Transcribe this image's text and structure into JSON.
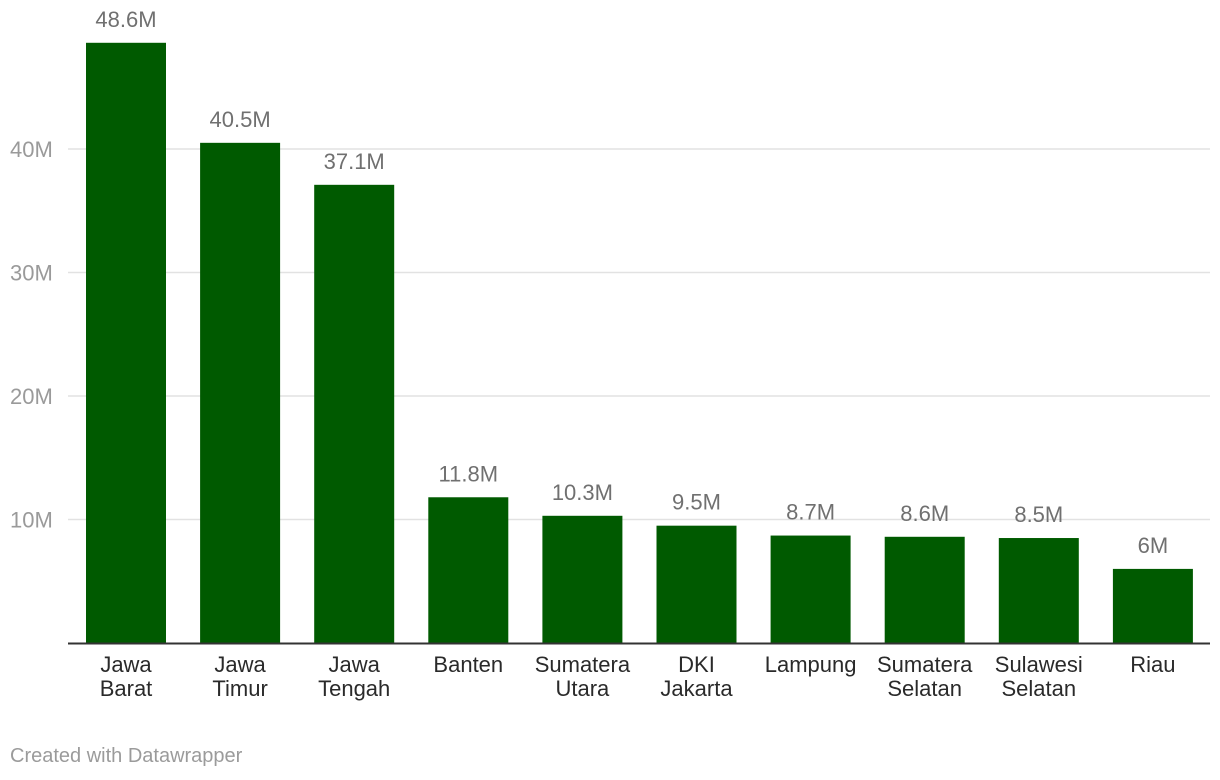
{
  "chart_data": {
    "type": "bar",
    "categories": [
      [
        "Jawa",
        "Barat"
      ],
      [
        "Jawa",
        "Timur"
      ],
      [
        "Jawa",
        "Tengah"
      ],
      [
        "Banten"
      ],
      [
        "Sumatera",
        "Utara"
      ],
      [
        "DKI",
        "Jakarta"
      ],
      [
        "Lampung"
      ],
      [
        "Sumatera",
        "Selatan"
      ],
      [
        "Sulawesi",
        "Selatan"
      ],
      [
        "Riau"
      ]
    ],
    "values": [
      48.6,
      40.5,
      37.1,
      11.8,
      10.3,
      9.5,
      8.7,
      8.6,
      8.5,
      6
    ],
    "value_labels": [
      "48.6M",
      "40.5M",
      "37.1M",
      "11.8M",
      "10.3M",
      "9.5M",
      "8.7M",
      "8.6M",
      "8.5M",
      "6M"
    ],
    "ylim": [
      0,
      52
    ],
    "yticks": [
      10,
      20,
      30,
      40
    ],
    "ytick_labels": [
      "10M",
      "20M",
      "30M",
      "40M"
    ],
    "grid": true,
    "bar_color": "#005a00"
  },
  "footer": {
    "credit": "Created with Datawrapper"
  }
}
